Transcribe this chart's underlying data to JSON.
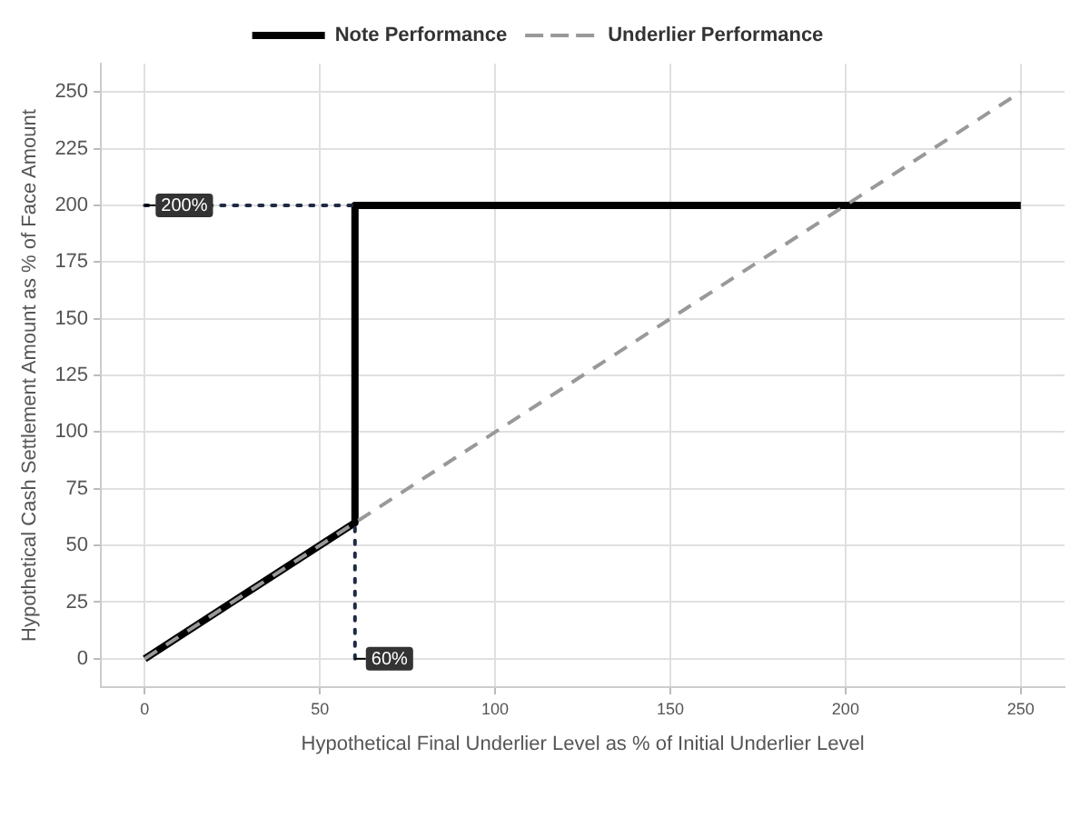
{
  "chart_data": {
    "type": "line",
    "xlabel": "Hypothetical Final Underlier Level as % of Initial Underlier Level",
    "ylabel": "Hypothetical Cash Settlement Amount as % of Face Amount",
    "series": [
      {
        "name": "Note Performance",
        "color": "#000000",
        "x": [
          0,
          60,
          60,
          250
        ],
        "values": [
          0,
          60,
          200,
          200
        ],
        "line_style": "solid"
      },
      {
        "name": "Underlier Performance",
        "color": "#999999",
        "x": [
          0,
          250
        ],
        "values": [
          0,
          250
        ],
        "line_style": "dashed"
      },
      {
        "color": "#1f2a44",
        "x": [
          0,
          60
        ],
        "values": [
          200,
          200
        ],
        "line_style": "dotted"
      },
      {
        "color": "#1f2a44",
        "x": [
          60,
          60
        ],
        "values": [
          0,
          60
        ],
        "line_style": "dotted"
      }
    ],
    "annotations": [
      {
        "text": "200%",
        "x": 0,
        "y": 200
      },
      {
        "text": "60%",
        "x": 60,
        "y": 0
      }
    ],
    "xlim": [
      -12.5,
      262.5
    ],
    "ylim": [
      -12.5,
      262.5
    ],
    "xticks": [
      0,
      50,
      100,
      150,
      200,
      250
    ],
    "yticks": [
      0,
      25,
      50,
      75,
      100,
      125,
      150,
      175,
      200,
      225,
      250
    ],
    "grid": true,
    "legend": "top",
    "marker": "none"
  }
}
